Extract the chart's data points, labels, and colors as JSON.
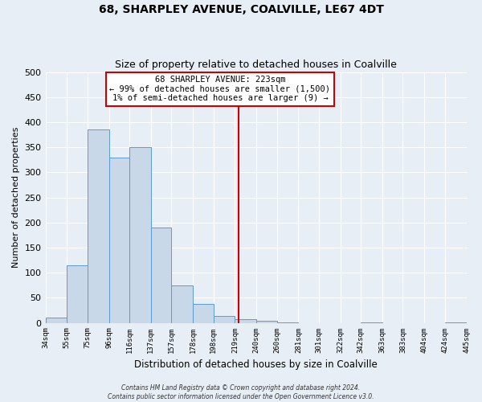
{
  "title": "68, SHARPLEY AVENUE, COALVILLE, LE67 4DT",
  "subtitle": "Size of property relative to detached houses in Coalville",
  "xlabel": "Distribution of detached houses by size in Coalville",
  "ylabel": "Number of detached properties",
  "bar_color": "#c8d8e8",
  "bar_edge_color": "#5b9bd5",
  "bg_color": "#e8eef5",
  "grid_color": "#ffffff",
  "bin_edges": [
    34,
    55,
    75,
    96,
    116,
    137,
    157,
    178,
    198,
    219,
    240,
    260,
    281,
    301,
    322,
    342,
    363,
    383,
    404,
    424,
    445
  ],
  "bar_heights": [
    10,
    115,
    385,
    330,
    350,
    190,
    75,
    38,
    13,
    7,
    4,
    1,
    0,
    0,
    0,
    1,
    0,
    0,
    0,
    1
  ],
  "tick_labels": [
    "34sqm",
    "55sqm",
    "75sqm",
    "96sqm",
    "116sqm",
    "137sqm",
    "157sqm",
    "178sqm",
    "198sqm",
    "219sqm",
    "240sqm",
    "260sqm",
    "281sqm",
    "301sqm",
    "322sqm",
    "342sqm",
    "363sqm",
    "383sqm",
    "404sqm",
    "424sqm",
    "445sqm"
  ],
  "property_size": 223,
  "red_line_color": "#cc0000",
  "annotation_title": "68 SHARPLEY AVENUE: 223sqm",
  "annotation_line1": "← 99% of detached houses are smaller (1,500)",
  "annotation_line2": "1% of semi-detached houses are larger (9) →",
  "annotation_box_color": "#ffffff",
  "annotation_box_edge": "#cc0000",
  "footer1": "Contains HM Land Registry data © Crown copyright and database right 2024.",
  "footer2": "Contains public sector information licensed under the Open Government Licence v3.0.",
  "ylim": [
    0,
    500
  ],
  "yticks": [
    0,
    50,
    100,
    150,
    200,
    250,
    300,
    350,
    400,
    450,
    500
  ]
}
